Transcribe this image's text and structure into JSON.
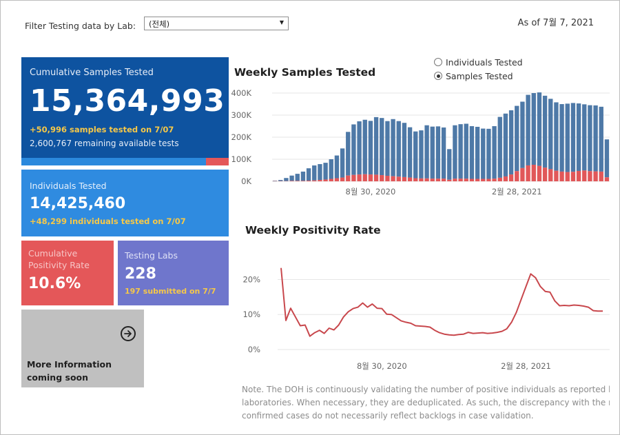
{
  "filter": {
    "label": "Filter Testing data by Lab:",
    "selected": "(전체)"
  },
  "as_of": "As of 7월 7, 2021",
  "cards": {
    "cumulative": {
      "title": "Cumulative Samples Tested",
      "value": "15,364,993",
      "sub1": "+50,996 samples tested on 7/07",
      "sub2": "2,600,767 remaining available tests",
      "used_fraction": 0.89,
      "colors": {
        "bg": "#0e53a0",
        "used": "#2b89dd",
        "remaining": "#e45759"
      }
    },
    "individuals": {
      "title": "Individuals Tested",
      "value": "14,425,460",
      "sub": "+48,299  individuals  tested on 7/07"
    },
    "positivity": {
      "title_line1": "Cumulative",
      "title_line2": "Positivity Rate",
      "value": "10.6%"
    },
    "labs": {
      "title": "Testing Labs",
      "value": "228",
      "sub": "197 submitted on 7/7"
    },
    "more": {
      "line1": "More Information",
      "line2": "coming soon",
      "icon": "arrow-right-circle-icon"
    }
  },
  "radio": {
    "options": [
      "Individuals Tested",
      "Samples Tested"
    ],
    "selected": "Samples Tested"
  },
  "note": {
    "line1": "Note. The DOH is continuously validating the number of positive individuals as reported by the",
    "line2": "laboratories. When necessary, they are deduplicated. As such, the discrepancy with the number of",
    "line3": "confirmed cases do not necessarily reflect backlogs in case validation."
  },
  "chart_data": [
    {
      "type": "bar",
      "title": "Weekly Samples Tested",
      "stacked": true,
      "yticks": [
        "0K",
        "100K",
        "200K",
        "300K",
        "400K"
      ],
      "ylim": [
        0,
        400000
      ],
      "xticks": [
        {
          "label": "8월 30, 2020",
          "index": 17
        },
        {
          "label": "2월 28, 2021",
          "index": 43
        }
      ],
      "grid": true,
      "series": [
        {
          "values": [
            2000,
            5000,
            14000,
            24000,
            32000,
            42000,
            56000,
            68000,
            72000,
            76000,
            89000,
            103000,
            132000,
            198000,
            229000,
            241000,
            247000,
            243000,
            261000,
            259000,
            248000,
            259000,
            252000,
            246000,
            228000,
            212000,
            218000,
            241000,
            236000,
            237000,
            232000,
            139000,
            242000,
            247000,
            249000,
            239000,
            236000,
            228000,
            227000,
            238000,
            276000,
            285000,
            291000,
            296000,
            301000,
            320000,
            325000,
            333000,
            326000,
            319000,
            310000,
            306000,
            310000,
            312000,
            306000,
            300000,
            299000,
            299000,
            294000,
            172000
          ],
          "color": "#4e79a7"
        },
        {
          "values": [
            1000,
            1000,
            1000,
            2000,
            2000,
            2000,
            3000,
            4000,
            6000,
            8000,
            11000,
            14000,
            17000,
            26000,
            29000,
            31000,
            32000,
            31000,
            30000,
            28000,
            25000,
            23000,
            21000,
            19000,
            17000,
            14000,
            13000,
            13000,
            12000,
            12000,
            12000,
            7000,
            12000,
            12000,
            12000,
            11000,
            11000,
            11000,
            11000,
            12000,
            16000,
            22000,
            31000,
            46000,
            60000,
            72000,
            75000,
            70000,
            62000,
            55000,
            48000,
            44000,
            42000,
            43000,
            47000,
            49000,
            46000,
            45000,
            44000,
            18000
          ],
          "color": "#e15759"
        }
      ]
    },
    {
      "type": "line",
      "title": "Weekly Positivity Rate",
      "yticks": [
        "0%",
        "10%",
        "20%"
      ],
      "ylim": [
        0,
        26
      ],
      "xticks": [
        {
          "label": "8월 30, 2020",
          "index": 21
        },
        {
          "label": "2월 28, 2021",
          "index": 51
        }
      ],
      "grid": true,
      "series": [
        {
          "values": [
            23.3,
            8.3,
            11.8,
            9.3,
            6.8,
            7.0,
            3.8,
            4.8,
            5.5,
            4.6,
            6.1,
            5.6,
            7.0,
            9.3,
            10.8,
            11.7,
            12.1,
            13.3,
            12.1,
            13.0,
            11.8,
            11.7,
            10.1,
            10.0,
            9.1,
            8.2,
            7.8,
            7.5,
            6.8,
            6.7,
            6.6,
            6.4,
            5.5,
            4.8,
            4.4,
            4.2,
            4.1,
            4.3,
            4.4,
            4.9,
            4.6,
            4.7,
            4.8,
            4.6,
            4.7,
            4.9,
            5.2,
            5.9,
            7.8,
            10.6,
            14.3,
            18.0,
            21.6,
            20.5,
            18.0,
            16.6,
            16.4,
            13.9,
            12.5,
            12.6,
            12.5,
            12.7,
            12.6,
            12.4,
            12.1,
            11.1,
            11.0,
            11.0
          ],
          "color": "#c8474c"
        }
      ]
    }
  ]
}
